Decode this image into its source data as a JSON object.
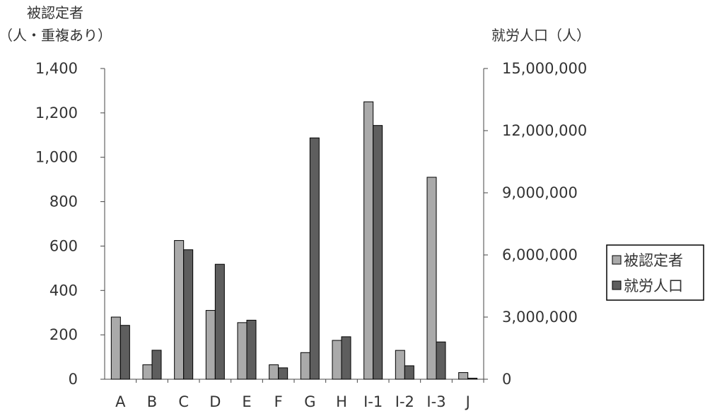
{
  "chart_data": {
    "type": "bar",
    "title": "",
    "categories": [
      "A",
      "B",
      "C",
      "D",
      "E",
      "F",
      "G",
      "H",
      "I-1",
      "I-2",
      "I-3",
      "J"
    ],
    "y_left": {
      "label_line1": "被認定者",
      "label_line2": "（人・重複あり）",
      "range": [
        0,
        1400
      ],
      "ticks": [
        0,
        200,
        400,
        600,
        800,
        1000,
        1200,
        1400
      ],
      "tick_labels": [
        "0",
        "200",
        "400",
        "600",
        "800",
        "1,000",
        "1,200",
        "1,400"
      ]
    },
    "y_right": {
      "label": "就労人口（人）",
      "range": [
        0,
        15000000
      ],
      "ticks": [
        0,
        3000000,
        6000000,
        9000000,
        12000000,
        15000000
      ],
      "tick_labels": [
        "0",
        "3,000,000",
        "6,000,000",
        "9,000,000",
        "12,000,000",
        "15,000,000"
      ]
    },
    "series": [
      {
        "name": "被認定者",
        "axis": "left",
        "color": "#aaaaaa",
        "values": [
          280,
          65,
          625,
          310,
          255,
          65,
          120,
          175,
          1250,
          130,
          910,
          30
        ]
      },
      {
        "name": "就労人口",
        "axis": "right",
        "color": "#5e5e5e",
        "values": [
          2600000,
          1400000,
          6250000,
          5550000,
          2850000,
          550000,
          11650000,
          2050000,
          12250000,
          650000,
          1800000,
          50000
        ]
      }
    ],
    "grid": false,
    "legend_position": "right"
  }
}
